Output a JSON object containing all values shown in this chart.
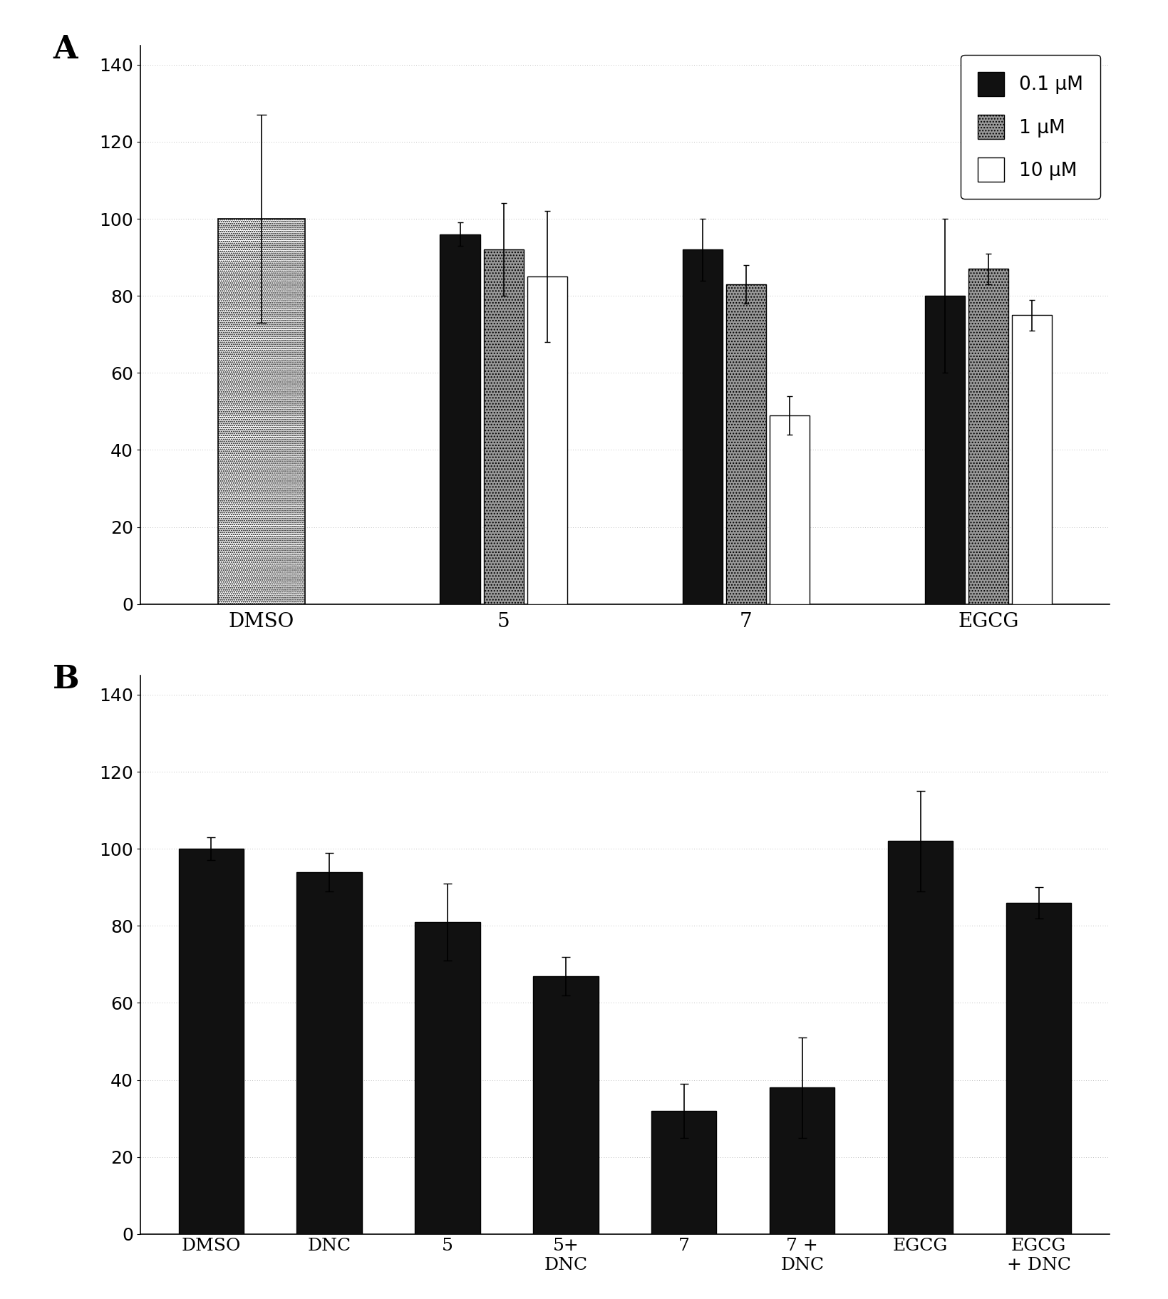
{
  "panel_A": {
    "groups": [
      "DMSO",
      "5",
      "7",
      "EGCG"
    ],
    "bar_values": {
      "DMSO": [
        100
      ],
      "5": [
        96,
        92,
        85
      ],
      "7": [
        92,
        83,
        49
      ],
      "EGCG": [
        80,
        87,
        75
      ]
    },
    "bar_errors": {
      "DMSO": [
        27
      ],
      "5": [
        3,
        12,
        17
      ],
      "7": [
        8,
        5,
        5
      ],
      "EGCG": [
        20,
        4,
        4
      ]
    },
    "ylim": [
      0,
      145
    ],
    "yticks": [
      0,
      20,
      40,
      60,
      80,
      100,
      120,
      140
    ],
    "legend_labels": [
      "0.1 μM",
      "1 μM",
      "10 μM"
    ]
  },
  "panel_B": {
    "groups": [
      "DMSO",
      "DNC",
      "5",
      "5+\nDNC",
      "7",
      "7 +\nDNC",
      "EGCG",
      "EGCG\n+ DNC"
    ],
    "bar_values": [
      100,
      94,
      81,
      67,
      32,
      38,
      102,
      86
    ],
    "bar_errors": [
      3,
      5,
      10,
      5,
      7,
      13,
      13,
      4
    ],
    "ylim": [
      0,
      145
    ],
    "yticks": [
      0,
      20,
      40,
      60,
      80,
      100,
      120,
      140
    ]
  },
  "label_A": "A",
  "label_B": "B"
}
